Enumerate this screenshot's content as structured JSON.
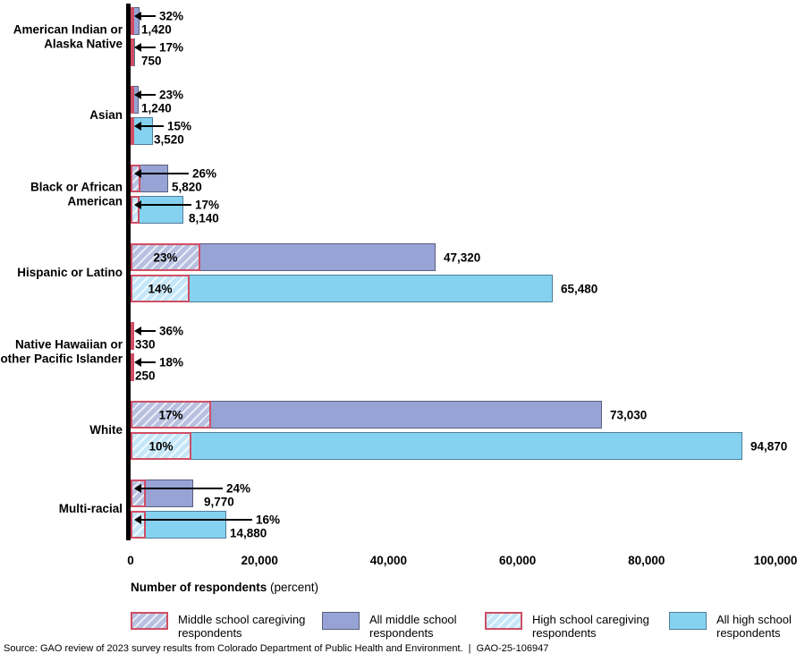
{
  "colors": {
    "middle_school_solid": "#97a3d5",
    "middle_school_hatch_bg": "#b8c0e0",
    "high_school_solid": "#85d2f0",
    "high_school_hatch_bg": "#c4e6f7",
    "caregiving_hatch_border": "#d04e64",
    "bar_border_dark": "#5a5f7c",
    "axis": "#000000"
  },
  "chart_data": {
    "type": "bar",
    "orientation": "horizontal",
    "title": "",
    "xlabel": "Number of respondents",
    "xlabel_suffix": " (percent)",
    "xlim": [
      0,
      100000
    ],
    "grid": false,
    "legend_position": "bottom",
    "x_ticks": [
      {
        "value": 0,
        "label": "0"
      },
      {
        "value": 20000,
        "label": "20,000"
      },
      {
        "value": 40000,
        "label": "40,000"
      },
      {
        "value": 60000,
        "label": "60,000"
      },
      {
        "value": 80000,
        "label": "80,000"
      },
      {
        "value": 100000,
        "label": "100,000"
      }
    ],
    "groups": [
      {
        "category": "American Indian or Alaska Native",
        "label_lines": [
          "American Indian or",
          "Alaska Native"
        ],
        "middle_school": {
          "total": 1420,
          "total_label": "1,420",
          "caregiving_pct": 32,
          "pct_label": "32%"
        },
        "high_school": {
          "total": 750,
          "total_label": "750",
          "caregiving_pct": 17,
          "pct_label": "17%"
        },
        "label_style": "arrow"
      },
      {
        "category": "Asian",
        "label_lines": [
          "Asian"
        ],
        "middle_school": {
          "total": 1240,
          "total_label": "1,240",
          "caregiving_pct": 23,
          "pct_label": "23%"
        },
        "high_school": {
          "total": 3520,
          "total_label": "3,520",
          "caregiving_pct": 15,
          "pct_label": "15%"
        },
        "label_style": "arrow"
      },
      {
        "category": "Black or African American",
        "label_lines": [
          "Black or African",
          "American"
        ],
        "middle_school": {
          "total": 5820,
          "total_label": "5,820",
          "caregiving_pct": 26,
          "pct_label": "26%"
        },
        "high_school": {
          "total": 8140,
          "total_label": "8,140",
          "caregiving_pct": 17,
          "pct_label": "17%"
        },
        "label_style": "arrow"
      },
      {
        "category": "Hispanic or Latino",
        "label_lines": [
          "Hispanic or Latino"
        ],
        "middle_school": {
          "total": 47320,
          "total_label": "47,320",
          "caregiving_pct": 23,
          "pct_label": "23%"
        },
        "high_school": {
          "total": 65480,
          "total_label": "65,480",
          "caregiving_pct": 14,
          "pct_label": "14%"
        },
        "label_style": "inside"
      },
      {
        "category": "Native Hawaiian or other Pacific Islander",
        "label_lines": [
          "Native Hawaiian or",
          "other Pacific Islander"
        ],
        "middle_school": {
          "total": 330,
          "total_label": "330",
          "caregiving_pct": 36,
          "pct_label": "36%"
        },
        "high_school": {
          "total": 250,
          "total_label": "250",
          "caregiving_pct": 18,
          "pct_label": "18%"
        },
        "label_style": "arrow"
      },
      {
        "category": "White",
        "label_lines": [
          "White"
        ],
        "middle_school": {
          "total": 73030,
          "total_label": "73,030",
          "caregiving_pct": 17,
          "pct_label": "17%"
        },
        "high_school": {
          "total": 94870,
          "total_label": "94,870",
          "caregiving_pct": 10,
          "pct_label": "10%"
        },
        "label_style": "inside"
      },
      {
        "category": "Multi-racial",
        "label_lines": [
          "Multi-racial"
        ],
        "middle_school": {
          "total": 9770,
          "total_label": "9,770",
          "caregiving_pct": 24,
          "pct_label": "24%"
        },
        "high_school": {
          "total": 14880,
          "total_label": "14,880",
          "caregiving_pct": 16,
          "pct_label": "16%"
        },
        "label_style": "arrow"
      }
    ],
    "legend": [
      {
        "label": "Middle school caregiving respondents",
        "style": "hatch-ms"
      },
      {
        "label": "All middle school respondents",
        "style": "solid-ms"
      },
      {
        "label": "High school caregiving respondents",
        "style": "hatch-hs"
      },
      {
        "label": "All high school respondents",
        "style": "solid-hs"
      }
    ]
  },
  "source_note": "Source: GAO review of 2023 survey results from Colorado Department of Public Health and Environment.  |  GAO-25-106947"
}
